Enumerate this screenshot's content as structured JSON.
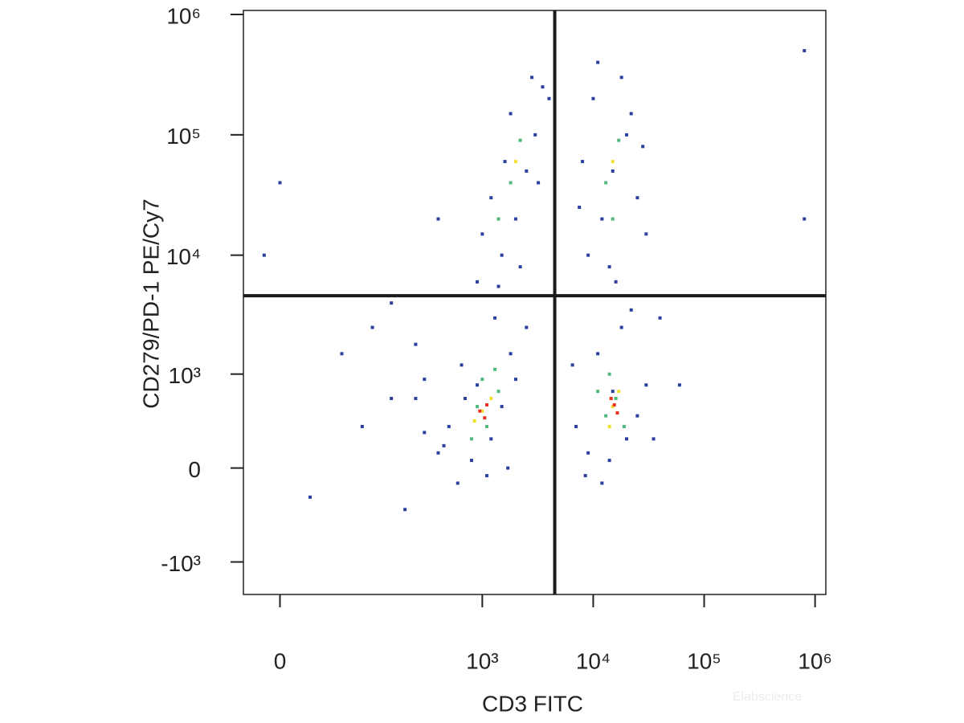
{
  "chart_data": {
    "type": "scatter",
    "xlabel": "CD3 FITC",
    "ylabel": "CD279/PD-1 PE/Cy7",
    "watermark": "Elabscience",
    "xscale": "biexponential",
    "yscale": "biexponential",
    "xlim": [
      -25,
      1250000
    ],
    "ylim": [
      -1900,
      1080000
    ],
    "xticks": [
      0,
      {
        "value": 1000,
        "label": "10³"
      },
      {
        "value": 10000,
        "label": "10⁴"
      },
      {
        "value": 100000,
        "label": "10⁵"
      },
      {
        "value": 1000000,
        "label": "10⁶"
      }
    ],
    "yticks": [
      {
        "value": -1000,
        "label": "-10³"
      },
      0,
      {
        "value": 1000,
        "label": "10³"
      },
      {
        "value": 10000,
        "label": "10⁴"
      },
      {
        "value": 100000,
        "label": "10⁵"
      },
      {
        "value": 1000000,
        "label": "10⁶"
      }
    ],
    "gates": {
      "x": 4500,
      "y": 4600,
      "color": "#1a1a1a"
    },
    "series": [
      {
        "color": "#2b3f9e",
        "x": [
          400,
          600,
          800,
          1200,
          500,
          700,
          1500,
          900,
          300,
          2000,
          1100,
          650,
          1800,
          2500,
          1300,
          450,
          1700,
          250,
          9000,
          12000,
          20000,
          15000,
          25000,
          7000,
          11000,
          18000,
          30000,
          8500,
          22000,
          14000,
          6500,
          35000,
          1500,
          2000,
          2500,
          3000,
          1200,
          1800,
          3500,
          2200,
          1000,
          2800,
          1600,
          3200,
          900,
          4000,
          1400,
          9000,
          12000,
          15000,
          20000,
          10000,
          25000,
          18000,
          8000,
          14000,
          22000,
          30000,
          11000,
          7500,
          16000,
          28000,
          0,
          -10,
          50,
          150,
          100,
          200,
          300,
          20,
          80,
          250,
          400,
          800000,
          800000,
          60000,
          40000,
          150
        ],
        "y": [
          100,
          -100,
          50,
          200,
          300,
          600,
          500,
          800,
          250,
          900,
          -50,
          1200,
          1500,
          2500,
          3000,
          150,
          0,
          600,
          100,
          -100,
          200,
          700,
          400,
          300,
          1500,
          2500,
          800,
          -50,
          3500,
          50,
          1200,
          200,
          10000,
          20000,
          50000,
          100000,
          30000,
          150000,
          250000,
          8000,
          15000,
          300000,
          60000,
          40000,
          6000,
          200000,
          5500,
          10000,
          20000,
          50000,
          100000,
          200000,
          30000,
          300000,
          60000,
          8000,
          150000,
          15000,
          400000,
          25000,
          6000,
          80000,
          40000,
          10000,
          1500,
          600,
          2500,
          -300,
          900,
          -200,
          300,
          1800,
          20000,
          500000,
          20000,
          800,
          3000,
          4000
        ]
      },
      {
        "color": "#4fb87a",
        "x": [
          900,
          1100,
          1400,
          800,
          1300,
          1000,
          13000,
          16000,
          19000,
          14000,
          11000,
          1800,
          2200,
          1400,
          13000,
          17000,
          15000
        ],
        "y": [
          500,
          300,
          700,
          200,
          1100,
          900,
          400,
          600,
          300,
          1000,
          700,
          40000,
          90000,
          20000,
          40000,
          90000,
          20000
        ]
      },
      {
        "color": "#f2e02a",
        "x": [
          1000,
          1200,
          850,
          15000,
          17000,
          14000,
          2000,
          15000
        ],
        "y": [
          450,
          600,
          350,
          500,
          700,
          300,
          60000,
          60000
        ]
      },
      {
        "color": "#e8331f",
        "x": [
          950,
          1050,
          1100,
          15500,
          16500,
          14500
        ],
        "y": [
          450,
          380,
          520,
          520,
          430,
          600
        ]
      }
    ]
  }
}
